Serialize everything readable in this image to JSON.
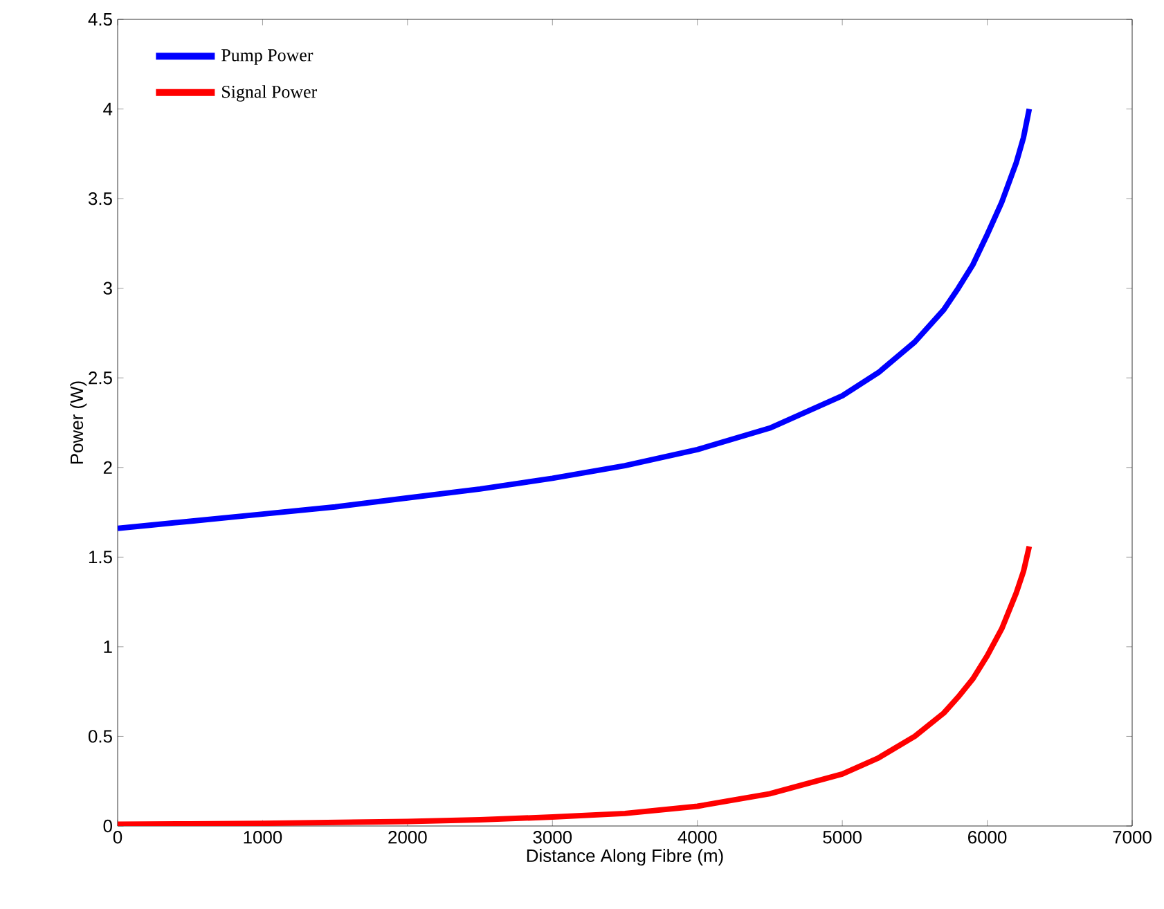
{
  "chart_data": {
    "type": "line",
    "xlabel": "Distance Along Fibre (m)",
    "ylabel": "Power (W)",
    "xlim": [
      0,
      7000
    ],
    "ylim": [
      0,
      4.5
    ],
    "xticks": [
      0,
      1000,
      2000,
      3000,
      4000,
      5000,
      6000,
      7000
    ],
    "yticks": [
      0,
      0.5,
      1,
      1.5,
      2,
      2.5,
      3,
      3.5,
      4,
      4.5
    ],
    "legend": "top left",
    "grid": false,
    "marker": "none",
    "line_style": "solid",
    "series": [
      {
        "name": "Pump Power",
        "color": "#0000ff",
        "x": [
          0,
          500,
          1000,
          1500,
          2000,
          2500,
          3000,
          3500,
          4000,
          4500,
          5000,
          5250,
          5500,
          5700,
          5800,
          5900,
          6000,
          6100,
          6200,
          6250,
          6290
        ],
        "values": [
          1.66,
          1.7,
          1.74,
          1.78,
          1.83,
          1.88,
          1.94,
          2.01,
          2.1,
          2.22,
          2.4,
          2.53,
          2.7,
          2.88,
          3.0,
          3.13,
          3.3,
          3.48,
          3.7,
          3.84,
          4.0
        ]
      },
      {
        "name": "Signal Power",
        "color": "#ff0000",
        "x": [
          0,
          500,
          1000,
          1500,
          2000,
          2500,
          3000,
          3500,
          4000,
          4500,
          5000,
          5250,
          5500,
          5700,
          5800,
          5900,
          6000,
          6100,
          6200,
          6250,
          6290
        ],
        "values": [
          0.01,
          0.012,
          0.015,
          0.02,
          0.025,
          0.035,
          0.05,
          0.07,
          0.11,
          0.18,
          0.29,
          0.38,
          0.5,
          0.63,
          0.72,
          0.82,
          0.95,
          1.1,
          1.3,
          1.42,
          1.56
        ]
      }
    ]
  }
}
